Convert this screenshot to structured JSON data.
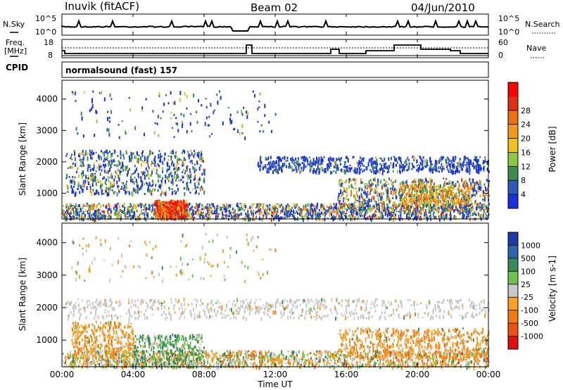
{
  "header": {
    "station": "Inuvik (fitACF)",
    "beam": "Beam 02",
    "date": "04/Jun/2010"
  },
  "noise_panel": {
    "left_label": "N.Sky",
    "left_ticks": [
      "10^5",
      "10^0"
    ],
    "right_label": "N.Search",
    "right_ticks": [
      "10^5",
      "10^0"
    ]
  },
  "freq_panel": {
    "left_label_top": "Freq.",
    "left_label_bottom": "[MHz]",
    "left_ticks": [
      "18",
      "8"
    ],
    "right_label": "Nave",
    "right_ticks": [
      "60",
      "0"
    ],
    "cpid_label": "CPID",
    "cpid_value": "normalsound (fast) 157"
  },
  "chart_data": [
    {
      "type": "heatmap",
      "name": "power",
      "ylabel": "Slant Range [km]",
      "y_ticks": [
        1000,
        2000,
        3000,
        4000
      ],
      "ylim": [
        180,
        4600
      ],
      "xlim": [
        0,
        24
      ],
      "colorbar": {
        "label": "Power [dB]",
        "ticks": [
          "4",
          "8",
          "12",
          "16",
          "20",
          "24",
          "28"
        ],
        "colors": [
          "#1a30e0",
          "#2a5bb8",
          "#3c8c50",
          "#8cc642",
          "#f0c020",
          "#f59a1e",
          "#f07010",
          "#e03010",
          "#ff0000"
        ]
      }
    },
    {
      "type": "heatmap",
      "name": "velocity",
      "ylabel": "Slant Range [km]",
      "y_ticks": [
        1000,
        2000,
        3000,
        4000
      ],
      "ylim": [
        180,
        4600
      ],
      "xlim": [
        0,
        24
      ],
      "colorbar": {
        "label": "Velocity [m s-1]",
        "ticks": [
          "1000",
          "500",
          "100",
          "25",
          "-25",
          "-100",
          "-500",
          "-1000"
        ],
        "colors": [
          "#1c3aa8",
          "#2a66b0",
          "#3a8a5a",
          "#6cc44a",
          "#c8c8c8",
          "#f8a020",
          "#f47a10",
          "#f05010",
          "#e01010"
        ]
      }
    }
  ],
  "x_axis": {
    "ticks": [
      "00:00",
      "04:00",
      "08:00",
      "12:00",
      "16:00",
      "20:00",
      "00:00"
    ],
    "label": "Time UT"
  }
}
